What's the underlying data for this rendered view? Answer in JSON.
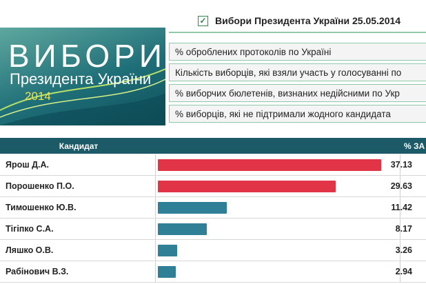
{
  "header": {
    "logo_title": "ВИБОРИ",
    "logo_subtitle": "Президента України",
    "logo_year": "2014",
    "election_title": "Вибори Президента України 25.05.2014"
  },
  "menu": [
    "% оброблених протоколів по Україні",
    "Кількість виборців, які взяли участь у голосуванні по",
    "% виборчих бюлетенів, визнаних недійсними по Укр",
    "% виборців, які не підтримали жодного кандидата"
  ],
  "table": {
    "columns": [
      "Кандидат",
      "% ЗА"
    ],
    "rows": [
      {
        "name": "Ярош Д.А.",
        "value": 37.13,
        "color": "#e23447"
      },
      {
        "name": "Порошенко П.О.",
        "value": 29.63,
        "color": "#e23447"
      },
      {
        "name": "Тимошенко Ю.В.",
        "value": 11.42,
        "color": "#2f7f96"
      },
      {
        "name": "Тігіпко С.А.",
        "value": 8.17,
        "color": "#2f7f96"
      },
      {
        "name": "Ляшко О.В.",
        "value": 3.26,
        "color": "#2f7f96"
      },
      {
        "name": "Рабінович В.З.",
        "value": 2.94,
        "color": "#2f7f96"
      }
    ]
  }
}
